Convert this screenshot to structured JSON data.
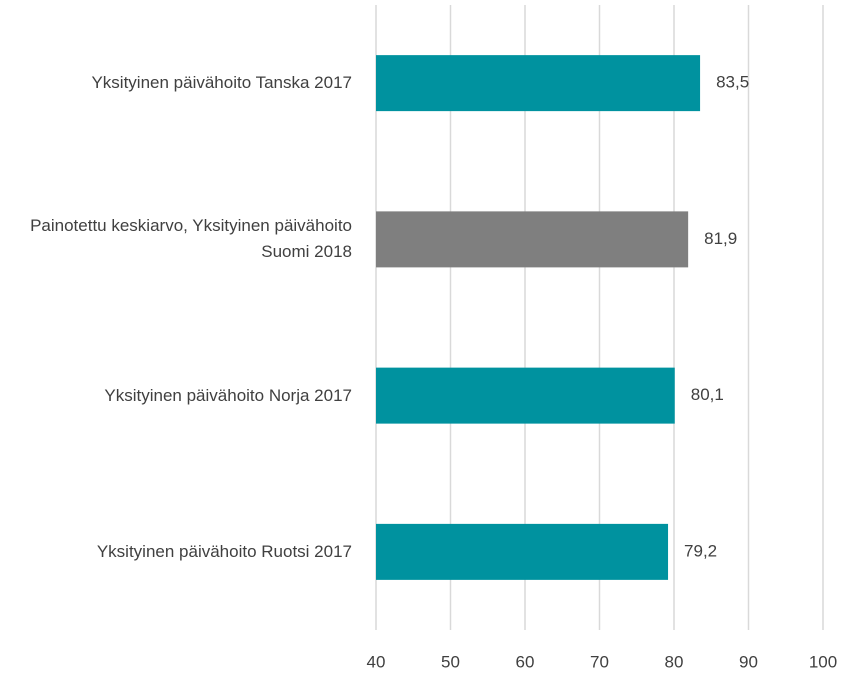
{
  "chart_data": {
    "type": "bar",
    "orientation": "horizontal",
    "categories": [
      "Yksityinen päivähoito Tanska 2017",
      "Painotettu keskiarvo, Yksityinen päivähoito Suomi 2018",
      "Yksityinen päivähoito Norja 2017",
      "Yksityinen päivähoito Ruotsi 2017"
    ],
    "values": [
      83.5,
      81.9,
      80.1,
      79.2
    ],
    "value_labels": [
      "83,5",
      "81,9",
      "80,1",
      "79,2"
    ],
    "colors": [
      "#00929f",
      "#7f7f7f",
      "#00929f",
      "#00929f"
    ],
    "xlim": [
      40,
      100
    ],
    "xticks": [
      40,
      50,
      60,
      70,
      80,
      90,
      100
    ],
    "grid": true
  }
}
